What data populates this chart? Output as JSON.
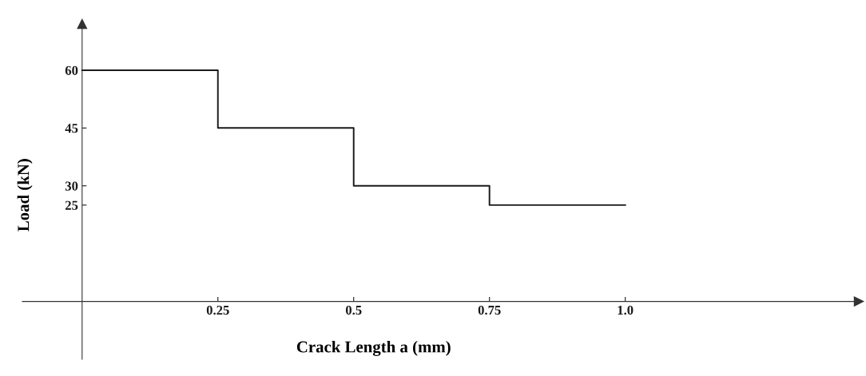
{
  "chart_data": {
    "type": "step",
    "xlabel": "Crack Length a (mm)",
    "ylabel": "Load (kN)",
    "x": [
      0,
      0.25,
      0.5,
      0.75,
      1.0
    ],
    "series": [
      {
        "color": "#1a1a1a",
        "values": [
          60,
          45,
          30,
          25,
          25
        ]
      }
    ],
    "xlim": [
      -0.11,
      1.43
    ],
    "ylim": [
      -15,
      72
    ],
    "xticks": [
      0.25,
      0.5,
      0.75,
      {
        "value": 1.0,
        "label": "1.0"
      }
    ],
    "yticks": [
      25,
      30,
      45,
      60
    ],
    "grid": false,
    "legend": false
  }
}
